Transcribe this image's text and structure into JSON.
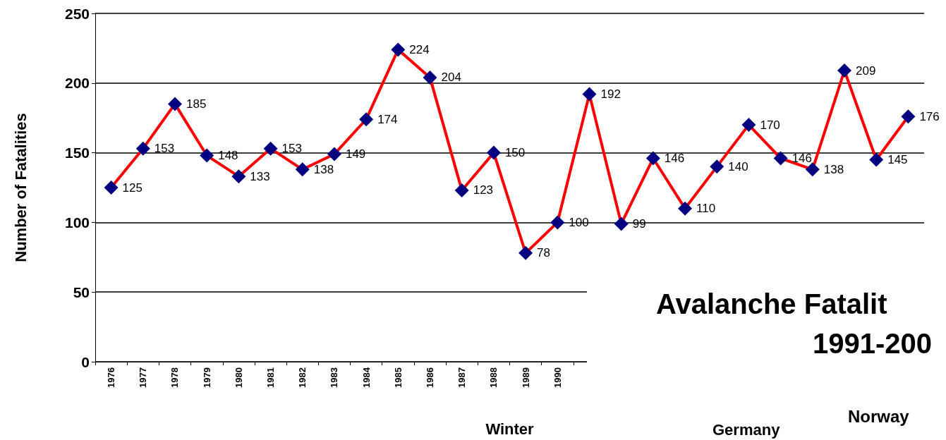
{
  "chart_data": {
    "type": "line",
    "xlabel": "Winter",
    "ylabel": "Number of Fatalities",
    "categories": [
      "1976",
      "1977",
      "1978",
      "1979",
      "1980",
      "1981",
      "1982",
      "1983",
      "1984",
      "1985",
      "1986",
      "1987",
      "1988",
      "1989",
      "1990",
      null,
      null,
      null,
      null,
      null,
      null,
      null,
      null,
      null,
      null,
      null
    ],
    "series": [
      {
        "color": "#ff0000",
        "values": [
          125,
          153,
          185,
          148,
          133,
          153,
          138,
          149,
          174,
          224,
          204,
          123,
          150,
          78,
          100,
          192,
          99,
          146,
          110,
          140,
          170,
          146,
          138,
          209,
          145,
          176
        ]
      }
    ],
    "marker": "diamond",
    "line_style": "solid",
    "data_labels": true,
    "ylim": [
      0,
      250
    ],
    "yticks": [
      0,
      50,
      100,
      150,
      200,
      250
    ],
    "grid": "y",
    "annotations": [
      "Avalanche Fatalit",
      "1991-200",
      "Norway",
      "Germany"
    ]
  }
}
